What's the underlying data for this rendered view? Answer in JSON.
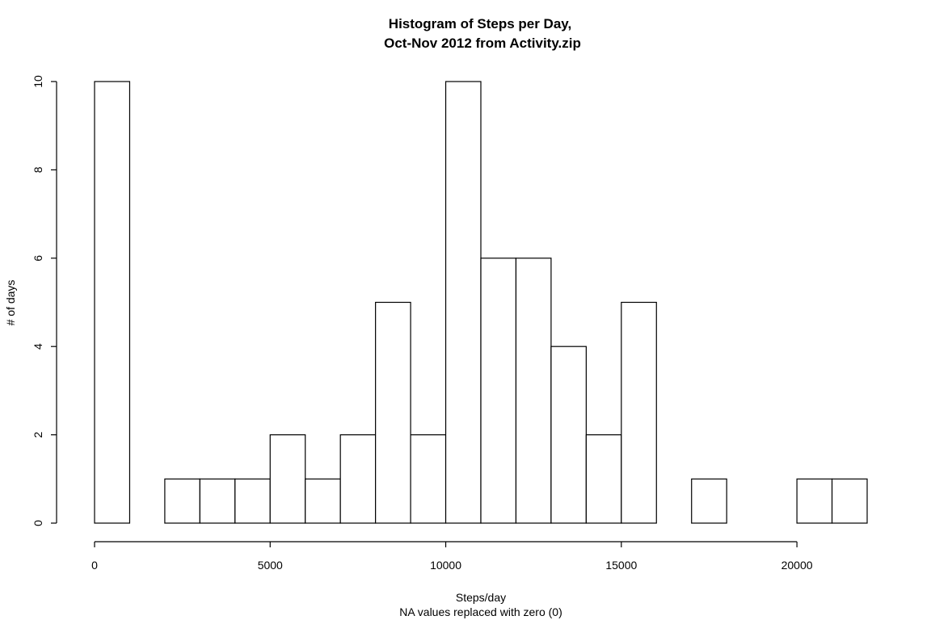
{
  "chart_data": {
    "type": "bar",
    "title": "Histogram of Steps per Day,",
    "subtitle": "Oct-Nov 2012 from Activity.zip",
    "xlabel": "Steps/day",
    "xlabel_note": "NA values replaced with zero (0)",
    "ylabel": "# of days",
    "bin_width": 1000,
    "bin_start": 0,
    "counts": [
      10,
      0,
      1,
      1,
      1,
      2,
      1,
      2,
      5,
      2,
      10,
      6,
      6,
      4,
      2,
      5,
      0,
      1,
      0,
      0,
      1,
      1
    ],
    "xlim": [
      0,
      22000
    ],
    "ylim": [
      0,
      10
    ],
    "x_ticks": [
      0,
      5000,
      10000,
      15000,
      20000
    ],
    "y_ticks": [
      0,
      2,
      4,
      6,
      8,
      10
    ],
    "grid": false
  }
}
